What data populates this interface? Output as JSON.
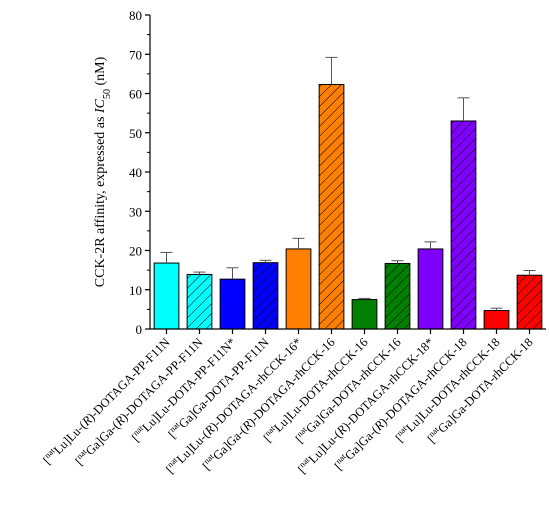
{
  "chart_data": {
    "type": "bar",
    "ylabel_parts": [
      "CCK-2R affinity, expressed as ",
      "IC",
      "50",
      " (nM)"
    ],
    "ylim": [
      0,
      80
    ],
    "yticks": [
      0,
      10,
      20,
      30,
      40,
      50,
      60,
      70,
      80
    ],
    "categories": [
      [
        {
          "t": "[",
          "s": 0
        },
        {
          "t": "nat",
          "s": 1
        },
        {
          "t": "Lu]Lu-(",
          "s": 0
        },
        {
          "t": "R",
          "s": 2
        },
        {
          "t": ")-DOTAGA-PP-F11N",
          "s": 0
        }
      ],
      [
        {
          "t": "[",
          "s": 0
        },
        {
          "t": "nat",
          "s": 1
        },
        {
          "t": "Ga]Ga-(",
          "s": 0
        },
        {
          "t": "R",
          "s": 2
        },
        {
          "t": ")-DOTAGA-PP-F11N",
          "s": 0
        }
      ],
      [
        {
          "t": "[",
          "s": 0
        },
        {
          "t": "nat",
          "s": 1
        },
        {
          "t": "Lu]Lu-DOTA-PP-F11N*",
          "s": 0
        }
      ],
      [
        {
          "t": "[",
          "s": 0
        },
        {
          "t": "nat",
          "s": 1
        },
        {
          "t": "Ga]Ga-DOTA-PP-F11N",
          "s": 0
        }
      ],
      [
        {
          "t": "[",
          "s": 0
        },
        {
          "t": "nat",
          "s": 1
        },
        {
          "t": "Lu]Lu-(",
          "s": 0
        },
        {
          "t": "R",
          "s": 2
        },
        {
          "t": ")-DOTAGA-rhCCK-16*",
          "s": 0
        }
      ],
      [
        {
          "t": "[",
          "s": 0
        },
        {
          "t": "nat",
          "s": 1
        },
        {
          "t": "Ga]Ga-(",
          "s": 0
        },
        {
          "t": "R",
          "s": 2
        },
        {
          "t": ")-DOTAGA-rhCCK-16",
          "s": 0
        }
      ],
      [
        {
          "t": "[",
          "s": 0
        },
        {
          "t": "nat",
          "s": 1
        },
        {
          "t": "Lu]Lu-DOTA-rhCCK-16",
          "s": 0
        }
      ],
      [
        {
          "t": "[",
          "s": 0
        },
        {
          "t": "nat",
          "s": 1
        },
        {
          "t": "Ga]Ga-DOTA-rhCCK-16",
          "s": 0
        }
      ],
      [
        {
          "t": "[",
          "s": 0
        },
        {
          "t": "nat",
          "s": 1
        },
        {
          "t": "Lu]Lu-(",
          "s": 0
        },
        {
          "t": "R",
          "s": 2
        },
        {
          "t": ")-DOTAGA-rhCCK-18*",
          "s": 0
        }
      ],
      [
        {
          "t": "[",
          "s": 0
        },
        {
          "t": "nat",
          "s": 1
        },
        {
          "t": "Ga]Ga-(",
          "s": 0
        },
        {
          "t": "R",
          "s": 2
        },
        {
          "t": ")-DOTAGA-rhCCK-18",
          "s": 0
        }
      ],
      [
        {
          "t": "[",
          "s": 0
        },
        {
          "t": "nat",
          "s": 1
        },
        {
          "t": "Lu]Lu-DOTA-rhCCK-18",
          "s": 0
        }
      ],
      [
        {
          "t": "[",
          "s": 0
        },
        {
          "t": "nat",
          "s": 1
        },
        {
          "t": "Ga]Ga-DOTA-rhCCK-18",
          "s": 0
        }
      ]
    ],
    "values": [
      16.8,
      13.9,
      12.7,
      16.9,
      20.4,
      62.3,
      7.5,
      16.7,
      20.4,
      53.0,
      4.7,
      13.7
    ],
    "errors": [
      2.7,
      0.6,
      2.9,
      0.6,
      2.7,
      6.9,
      0.3,
      0.7,
      1.8,
      5.9,
      0.6,
      1.2
    ],
    "colors": [
      "#00ffff",
      "#00ffff",
      "#0000ff",
      "#0000ff",
      "#ff7f00",
      "#ff7f00",
      "#007f00",
      "#007f00",
      "#7f00ff",
      "#7f00ff",
      "#ff0000",
      "#ff0000"
    ],
    "hatched": [
      false,
      true,
      false,
      true,
      false,
      true,
      false,
      true,
      false,
      true,
      false,
      true
    ],
    "grid": false,
    "legend": "none"
  }
}
